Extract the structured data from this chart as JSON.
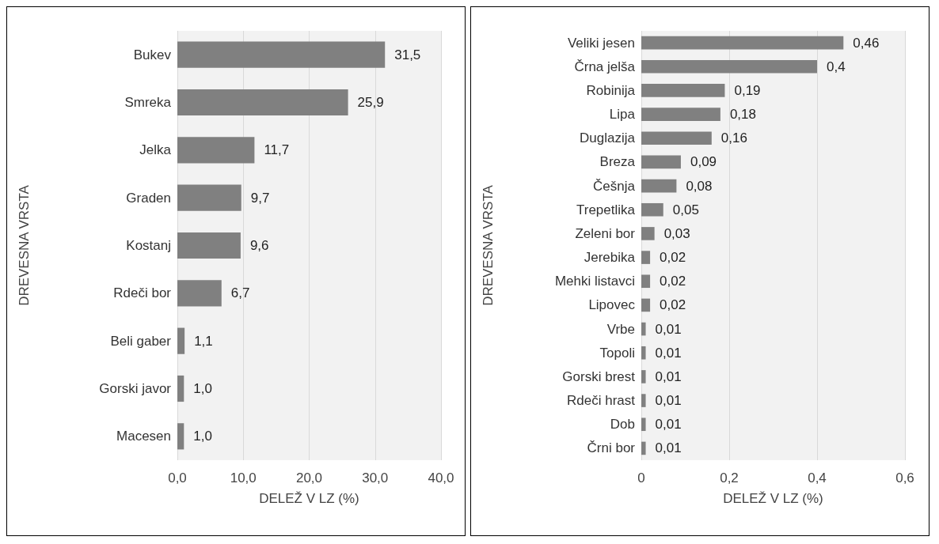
{
  "chart_data": [
    {
      "type": "bar",
      "orientation": "horizontal",
      "categories": [
        "Bukev",
        "Smreka",
        "Jelka",
        "Graden",
        "Kostanj",
        "Rdeči bor",
        "Beli gaber",
        "Gorski javor",
        "Macesen"
      ],
      "values": [
        31.5,
        25.9,
        11.7,
        9.7,
        9.6,
        6.7,
        1.1,
        1.0,
        1.0
      ],
      "value_labels": [
        "31,5",
        "25,9",
        "11,7",
        "9,7",
        "9,6",
        "6,7",
        "1,1",
        "1,0",
        "1,0"
      ],
      "color": "#808080",
      "xlim": [
        0,
        40
      ],
      "xticks": [
        {
          "value": 0,
          "label": "0,0"
        },
        {
          "value": 10,
          "label": "10,0"
        },
        {
          "value": 20,
          "label": "20,0"
        },
        {
          "value": 30,
          "label": "30,0"
        },
        {
          "value": 40,
          "label": "40,0"
        }
      ],
      "xlabel": "DELEŽ V LZ (%)",
      "ylabel": "DREVESNA VRSTA",
      "grid": "x"
    },
    {
      "type": "bar",
      "orientation": "horizontal",
      "categories": [
        "Veliki jesen",
        "Črna jelša",
        "Robinija",
        "Lipa",
        "Duglazija",
        "Breza",
        "Češnja",
        "Trepetlika",
        "Zeleni bor",
        "Jerebika",
        "Mehki listavci",
        "Lipovec",
        "Vrbe",
        "Topoli",
        "Gorski brest",
        "Rdeči hrast",
        "Dob",
        "Črni bor"
      ],
      "values": [
        0.46,
        0.4,
        0.19,
        0.18,
        0.16,
        0.09,
        0.08,
        0.05,
        0.03,
        0.02,
        0.02,
        0.02,
        0.01,
        0.01,
        0.01,
        0.01,
        0.01,
        0.01
      ],
      "value_labels": [
        "0,46",
        "0,4",
        "0,19",
        "0,18",
        "0,16",
        "0,09",
        "0,08",
        "0,05",
        "0,03",
        "0,02",
        "0,02",
        "0,02",
        "0,01",
        "0,01",
        "0,01",
        "0,01",
        "0,01",
        "0,01"
      ],
      "color": "#808080",
      "xlim": [
        0,
        0.6
      ],
      "xticks": [
        0,
        {
          "value": 0.2,
          "label": "0,2"
        },
        {
          "value": 0.4,
          "label": "0,4"
        },
        {
          "value": 0.6,
          "label": "0,6"
        }
      ],
      "xlabel": "DELEŽ V LZ (%)",
      "ylabel": "DREVESNA VRSTA",
      "grid": "x"
    }
  ]
}
